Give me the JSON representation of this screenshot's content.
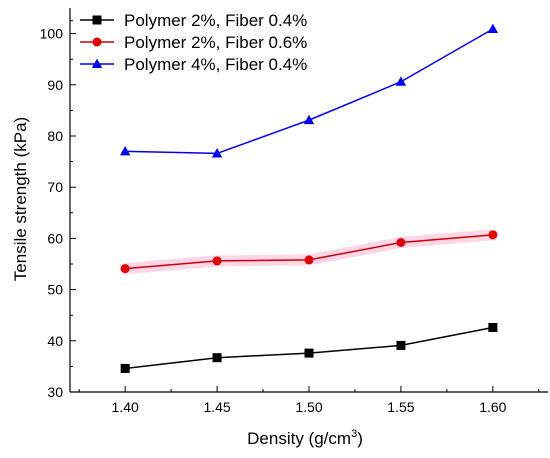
{
  "chart_data": {
    "type": "line",
    "title": "",
    "xlabel": "Density (g/cm",
    "xlabel_sup": "3",
    "xlabel_close": ")",
    "ylabel": "Tensile strength (kPa)",
    "xlim": [
      1.37,
      1.63
    ],
    "ylim": [
      30,
      105
    ],
    "x": [
      1.4,
      1.45,
      1.5,
      1.55,
      1.6
    ],
    "x_tick_labels": [
      "1.40",
      "1.45",
      "1.50",
      "1.55",
      "1.60"
    ],
    "y_ticks": [
      30,
      40,
      50,
      60,
      70,
      80,
      90,
      100
    ],
    "y_tick_labels": [
      "30",
      "40",
      "50",
      "60",
      "70",
      "80",
      "90",
      "100"
    ],
    "grid": false,
    "legend_position": "top-left",
    "series": [
      {
        "name": "Polymer 2%, Fiber 0.4%",
        "values": [
          34.6,
          36.7,
          37.6,
          39.1,
          42.6
        ],
        "color": "#000000",
        "marker": "square"
      },
      {
        "name": "Polymer 2%, Fiber 0.6%",
        "values": [
          54.1,
          55.6,
          55.8,
          59.2,
          60.7
        ],
        "color": "#cc0000",
        "marker_fill": "#dd0000",
        "band_color": "#ffd6e8",
        "marker": "circle"
      },
      {
        "name": "Polymer 4%, Fiber 0.4%",
        "values": [
          77.0,
          76.6,
          83.1,
          90.6,
          100.9
        ],
        "color": "#0000ee",
        "marker": "triangle"
      }
    ]
  }
}
